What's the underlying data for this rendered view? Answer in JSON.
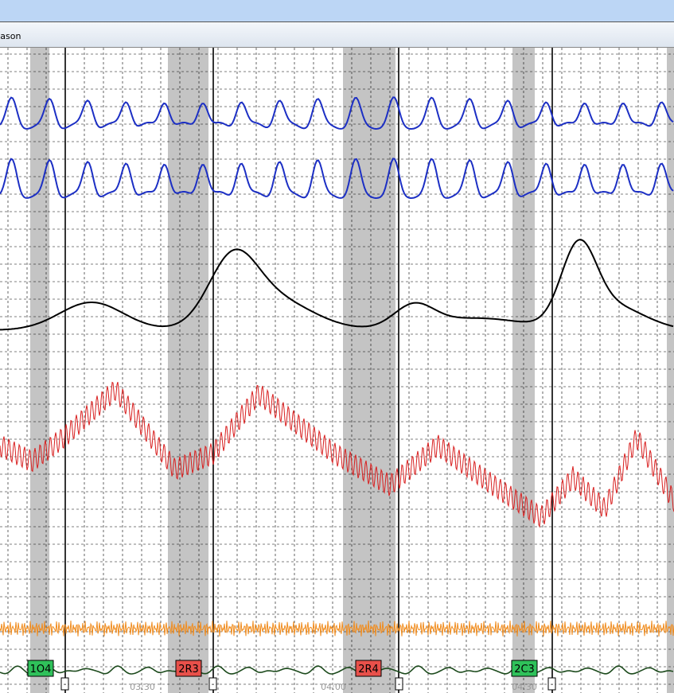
{
  "window": {
    "title": "Jason"
  },
  "markers": [
    {
      "label": "1O4",
      "kind": "control"
    },
    {
      "label": "2R3",
      "kind": "relevant"
    },
    {
      "label": "2R4",
      "kind": "relevant"
    },
    {
      "label": "2C3",
      "kind": "control"
    }
  ],
  "time_labels": [
    "03:30",
    "04:00",
    "04:30"
  ],
  "marker_buttons": [
    "-",
    "-",
    "-",
    "-"
  ]
}
